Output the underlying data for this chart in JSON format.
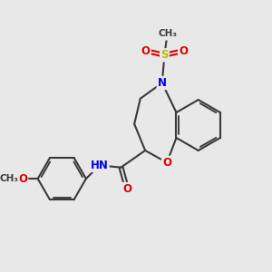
{
  "bg_color": "#e8e8e8",
  "bond_color": "#3a3a3a",
  "bond_width": 1.5,
  "atom_colors": {
    "N": "#0000ee",
    "O": "#dd0000",
    "S": "#bbbb00",
    "C": "#3a3a3a",
    "H": "#606060"
  },
  "font_size_atom": 8.5,
  "figsize": [
    3.0,
    3.0
  ],
  "dpi": 100,
  "xlim": [
    0,
    10
  ],
  "ylim": [
    0,
    10
  ]
}
